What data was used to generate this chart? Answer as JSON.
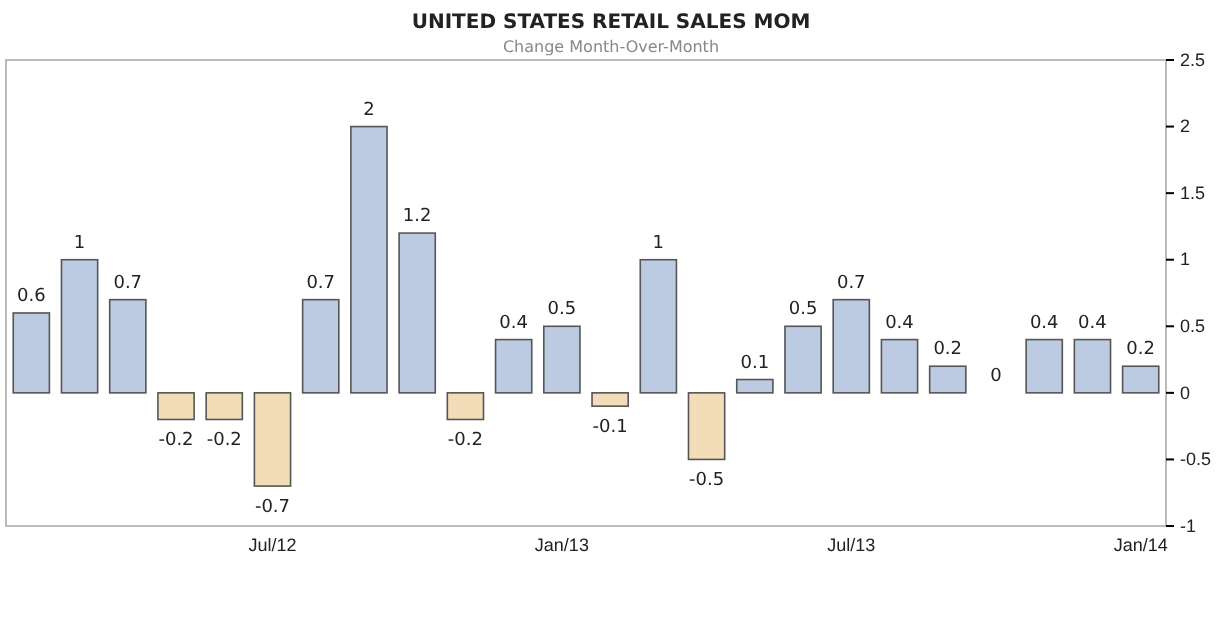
{
  "chart_data": {
    "type": "bar",
    "title": "UNITED STATES RETAIL SALES MOM",
    "subtitle": "Change Month-Over-Month",
    "categories": [
      null,
      null,
      null,
      null,
      null,
      "Jul/12",
      null,
      null,
      null,
      null,
      null,
      "Jan/13",
      null,
      null,
      null,
      null,
      null,
      "Jul/13",
      null,
      null,
      null,
      null,
      null,
      "Jan/14"
    ],
    "values": [
      0.6,
      1,
      0.7,
      -0.2,
      -0.2,
      -0.7,
      0.7,
      2,
      1.2,
      -0.2,
      0.4,
      0.5,
      -0.1,
      1,
      -0.5,
      0.1,
      0.5,
      0.7,
      0.4,
      0.2,
      0,
      0.4,
      0.4,
      0.2
    ],
    "colors": [
      "#bccbe2",
      "#bccbe2",
      "#bccbe2",
      "#f3dcb8",
      "#f3dcb8",
      "#f3dcb8",
      "#bccbe2",
      "#bccbe2",
      "#bccbe2",
      "#f3dcb8",
      "#bccbe2",
      "#bccbe2",
      "#f3dcb8",
      "#bccbe2",
      "#f3dcb8",
      "#bccbe2",
      "#bccbe2",
      "#bccbe2",
      "#bccbe2",
      "#bccbe2",
      "#bccbe2",
      "#bccbe2",
      "#bccbe2",
      "#bccbe2"
    ],
    "ylim": [
      -1,
      2.5
    ],
    "yticks": [
      -1,
      -0.5,
      0,
      0.5,
      1,
      1.5,
      2,
      2.5
    ],
    "data_labels": true
  }
}
